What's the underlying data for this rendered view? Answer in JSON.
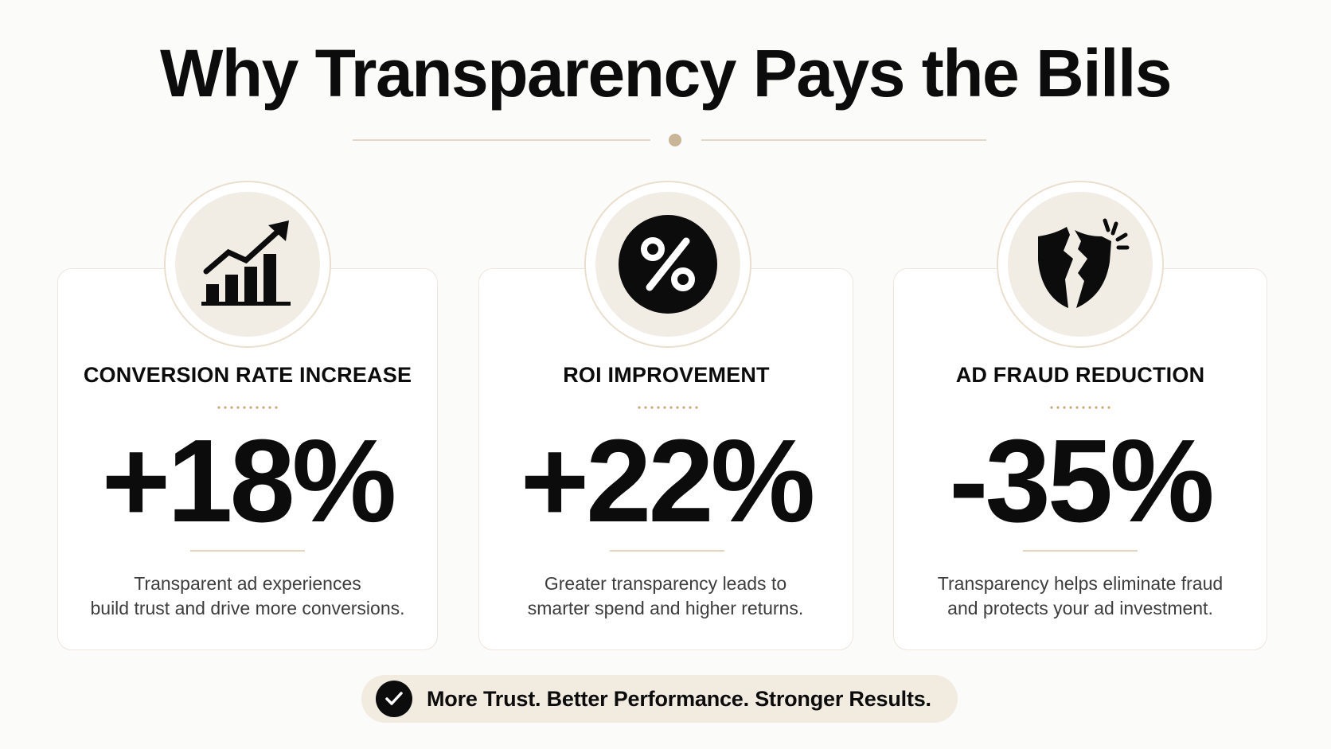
{
  "title": "Why Transparency Pays the Bills",
  "colors": {
    "accent": "#c9b597",
    "icon_bg": "#f1ece4",
    "text": "#0c0c0c",
    "pill_bg": "#f2ebe0"
  },
  "metrics": [
    {
      "icon": "trending-bar-chart-icon",
      "label": "CONVERSION RATE INCREASE",
      "value": "+18%",
      "description_line1": "Transparent ad experiences",
      "description_line2": "build trust and drive more conversions."
    },
    {
      "icon": "percent-icon",
      "label": "ROI IMPROVEMENT",
      "value": "+22%",
      "description_line1": "Greater transparency leads to",
      "description_line2": "smarter spend and higher returns."
    },
    {
      "icon": "broken-shield-icon",
      "label": "AD FRAUD REDUCTION",
      "value": "-35%",
      "description_line1": "Transparency helps eliminate fraud",
      "description_line2": "and protects your ad investment."
    }
  ],
  "footer": {
    "icon": "check-circle-icon",
    "text": "More Trust. Better Performance. Stronger Results."
  }
}
